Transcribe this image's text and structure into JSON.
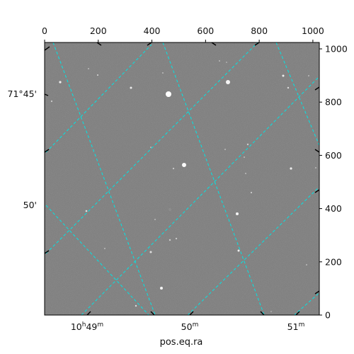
{
  "image": {
    "background_color": "#7a7a7a",
    "grid_color": "#00e5e5",
    "x_pixel_axis": {
      "range": [
        0,
        1024
      ],
      "ticks": [
        0,
        200,
        400,
        600,
        800,
        1000
      ]
    },
    "y_pixel_axis": {
      "range": [
        0,
        1024
      ],
      "ticks": [
        0,
        200,
        400,
        600,
        800,
        1000
      ]
    },
    "ra_ticks": [
      {
        "main": "10",
        "sup1": "h",
        "mid": "49",
        "sup2": "m"
      },
      {
        "main": "50",
        "sup1": "m",
        "mid": "",
        "sup2": ""
      },
      {
        "main": "51",
        "sup1": "m",
        "mid": "",
        "sup2": ""
      }
    ],
    "dec_ticks": [
      "71°45'",
      "50'"
    ],
    "xlabel": "pos.eq.ra"
  }
}
